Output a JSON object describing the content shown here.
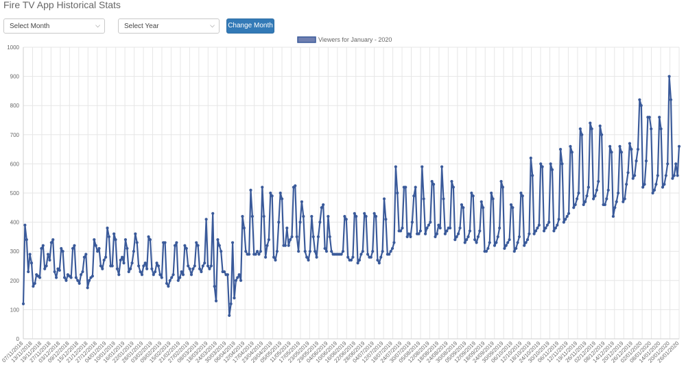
{
  "page": {
    "title": "Fire TV App Historical Stats"
  },
  "controls": {
    "month_select": "Select Month",
    "year_select": "Select Year",
    "change_button": "Change Month"
  },
  "colors": {
    "series": "#3a5a9a",
    "legend_fill": "#6f7fb0",
    "grid": "#e6e6e6",
    "button": "#337ab7"
  },
  "chart_data": {
    "type": "line",
    "legend": "Viewers for January - 2020",
    "legend_position": "top-center",
    "grid": true,
    "ylim": [
      0,
      1000
    ],
    "y_ticks": [
      0,
      100,
      200,
      300,
      400,
      500,
      600,
      700,
      800,
      900,
      1000
    ],
    "x_tick_labels": [
      "07/11/2018",
      "13/11/2018",
      "19/11/2018",
      "27/11/2018",
      "03/12/2018",
      "09/12/2018",
      "15/12/2018",
      "21/12/2018",
      "27/12/2018",
      "04/01/2019",
      "10/01/2019",
      "16/01/2019",
      "22/01/2019",
      "28/01/2019",
      "03/02/2019",
      "09/02/2019",
      "15/02/2019",
      "21/02/2019",
      "27/02/2019",
      "08/03/2019",
      "18/03/2019",
      "24/03/2019",
      "30/03/2019",
      "06/04/2019",
      "12/04/2019",
      "17/04/2019",
      "23/04/2019",
      "29/04/2019",
      "05/05/2019",
      "11/05/2019",
      "17/05/2019",
      "23/05/2019",
      "29/05/2019",
      "04/06/2019",
      "10/06/2019",
      "16/06/2019",
      "22/06/2019",
      "28/06/2019",
      "04/07/2019",
      "12/07/2019",
      "18/07/2019",
      "24/07/2019",
      "30/07/2019",
      "05/08/2019",
      "12/08/2019",
      "18/08/2019",
      "24/08/2019",
      "30/08/2019",
      "05/09/2019",
      "12/09/2019",
      "18/09/2019",
      "24/09/2019",
      "30/09/2019",
      "06/10/2019",
      "12/10/2019",
      "18/10/2019",
      "24/10/2019",
      "30/10/2019",
      "06/11/2019",
      "12/11/2019",
      "19/11/2019",
      "26/11/2019",
      "02/12/2019",
      "08/12/2019",
      "14/12/2019",
      "20/12/2019",
      "26/12/2019",
      "02/01/2020",
      "08/01/2020",
      "14/01/2020",
      "20/01/2020",
      "26/01/2020"
    ],
    "values": [
      120,
      390,
      340,
      230,
      290,
      260,
      180,
      190,
      220,
      215,
      210,
      310,
      320,
      240,
      250,
      290,
      270,
      330,
      340,
      230,
      210,
      240,
      235,
      310,
      300,
      210,
      200,
      220,
      215,
      210,
      310,
      320,
      210,
      200,
      190,
      220,
      230,
      280,
      290,
      175,
      200,
      210,
      215,
      340,
      320,
      300,
      310,
      250,
      240,
      270,
      280,
      380,
      350,
      250,
      250,
      360,
      340,
      240,
      220,
      270,
      280,
      260,
      340,
      310,
      230,
      240,
      260,
      300,
      360,
      330,
      250,
      230,
      220,
      250,
      260,
      240,
      350,
      340,
      240,
      220,
      230,
      260,
      250,
      220,
      210,
      330,
      330,
      190,
      180,
      200,
      210,
      220,
      320,
      330,
      200,
      210,
      230,
      220,
      320,
      310,
      250,
      240,
      220,
      240,
      250,
      330,
      320,
      240,
      230,
      250,
      260,
      410,
      250,
      240,
      250,
      430,
      180,
      130,
      340,
      320,
      300,
      230,
      230,
      220,
      220,
      80,
      120,
      330,
      140,
      200,
      210,
      220,
      200,
      420,
      380,
      300,
      290,
      290,
      510,
      420,
      290,
      290,
      300,
      290,
      300,
      520,
      420,
      280,
      320,
      340,
      500,
      490,
      280,
      270,
      300,
      400,
      500,
      480,
      320,
      320,
      380,
      320,
      340,
      350,
      520,
      525,
      350,
      300,
      400,
      470,
      420,
      300,
      280,
      270,
      300,
      420,
      350,
      300,
      280,
      350,
      400,
      450,
      460,
      310,
      300,
      420,
      350,
      300,
      290,
      290,
      290,
      290,
      290,
      290,
      300,
      420,
      410,
      280,
      270,
      270,
      280,
      430,
      420,
      260,
      270,
      290,
      300,
      430,
      420,
      290,
      280,
      280,
      300,
      430,
      420,
      270,
      260,
      280,
      300,
      480,
      410,
      290,
      290,
      300,
      310,
      330,
      590,
      500,
      370,
      370,
      380,
      520,
      520,
      350,
      360,
      350,
      400,
      490,
      520,
      360,
      360,
      370,
      590,
      480,
      360,
      380,
      390,
      400,
      540,
      530,
      350,
      360,
      390,
      380,
      590,
      480,
      360,
      370,
      380,
      380,
      540,
      520,
      340,
      350,
      360,
      380,
      460,
      450,
      330,
      340,
      350,
      370,
      500,
      490,
      340,
      330,
      350,
      370,
      470,
      450,
      300,
      300,
      310,
      330,
      500,
      480,
      320,
      330,
      350,
      380,
      540,
      520,
      310,
      320,
      330,
      340,
      460,
      450,
      300,
      310,
      330,
      350,
      500,
      490,
      320,
      330,
      340,
      360,
      620,
      560,
      360,
      370,
      380,
      390,
      600,
      590,
      370,
      380,
      390,
      400,
      600,
      580,
      370,
      380,
      390,
      410,
      650,
      600,
      400,
      410,
      420,
      430,
      660,
      640,
      450,
      460,
      480,
      500,
      720,
      700,
      460,
      470,
      490,
      520,
      740,
      720,
      480,
      490,
      510,
      540,
      730,
      700,
      460,
      460,
      480,
      510,
      660,
      640,
      420,
      450,
      470,
      500,
      660,
      640,
      470,
      480,
      530,
      570,
      670,
      650,
      550,
      560,
      610,
      650,
      820,
      800,
      520,
      530,
      610,
      760,
      760,
      720,
      500,
      510,
      530,
      560,
      760,
      720,
      520,
      530,
      560,
      600,
      900,
      820,
      550,
      560,
      600,
      560,
      660
    ]
  }
}
